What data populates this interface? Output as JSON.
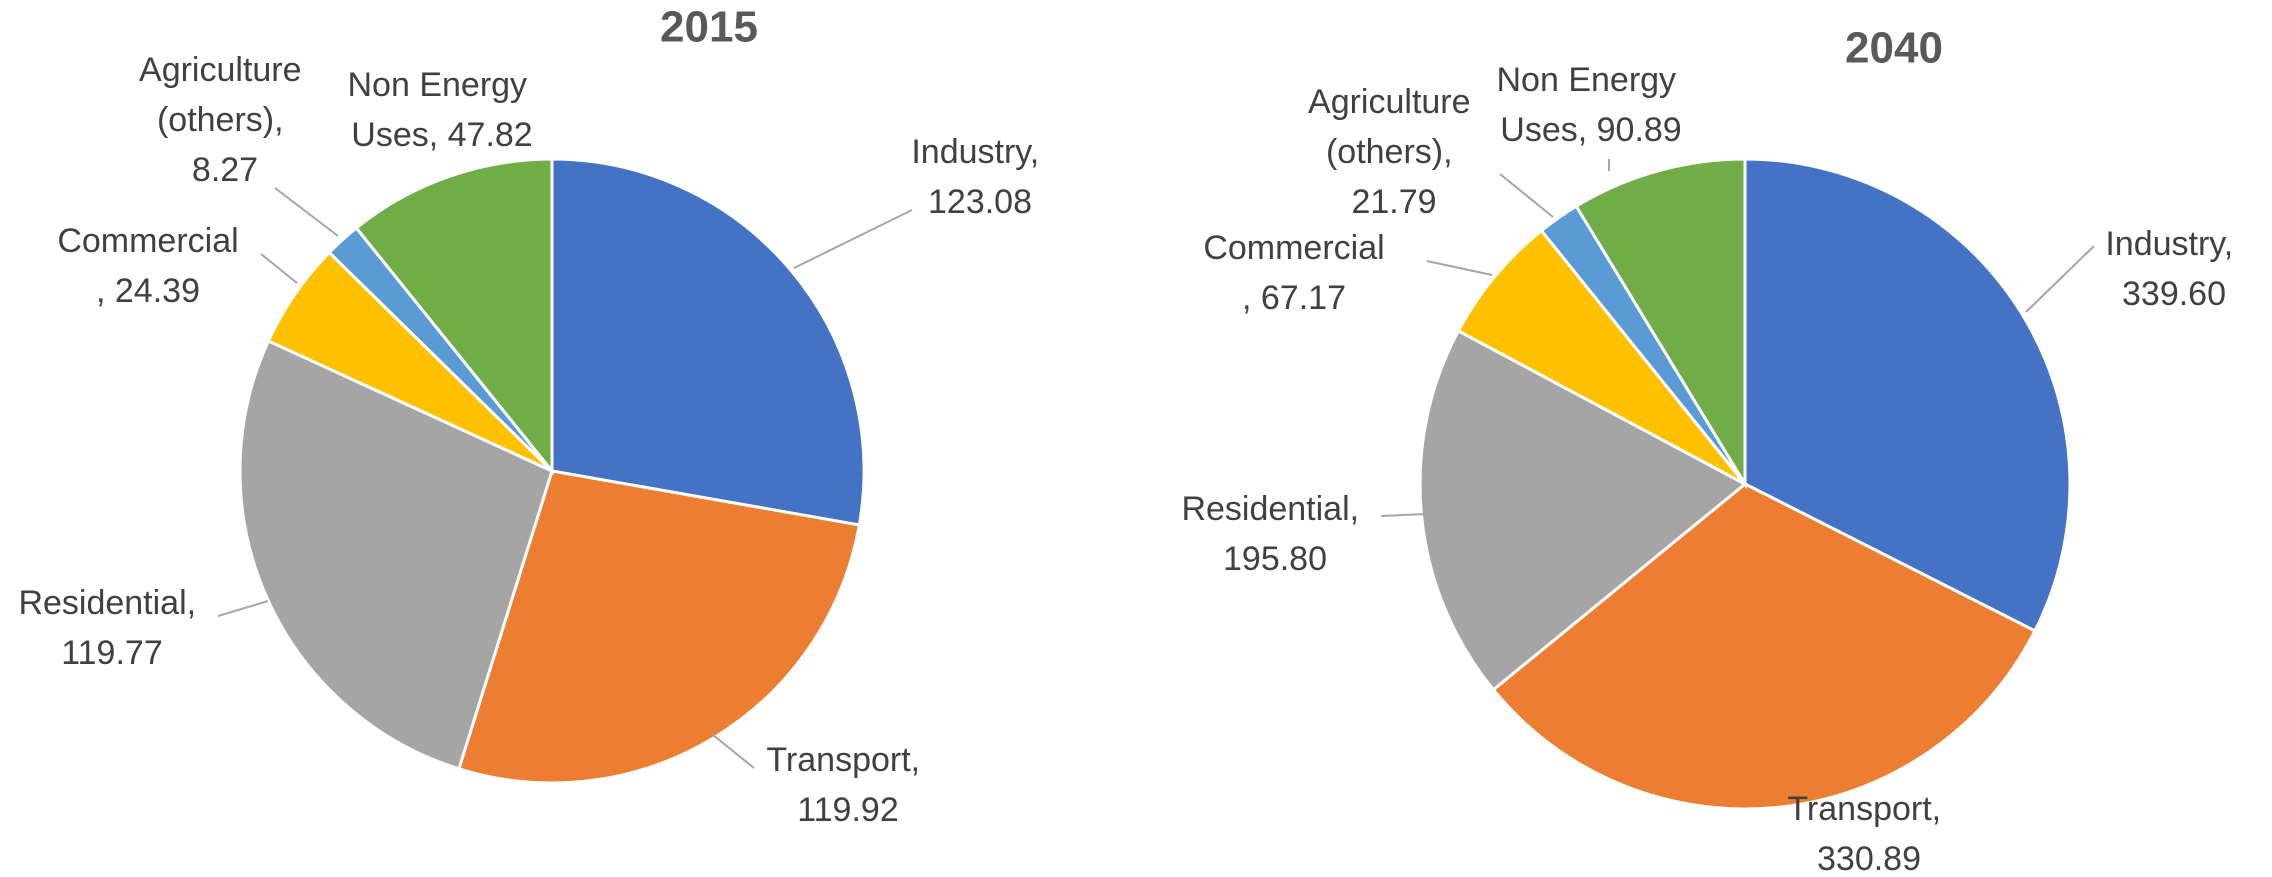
{
  "chart_data": [
    {
      "type": "pie",
      "title": "2015",
      "values": [
        123.08,
        119.92,
        119.77,
        24.39,
        8.27,
        47.82
      ],
      "value_labels": [
        "Industry, 123.08",
        "Transport, 119.92",
        "Residential, 119.77",
        "Commercial, 24.39",
        "Agriculture (others), 8.27",
        "Non Energy Uses, 47.82"
      ],
      "colors": [
        "#4472c4",
        "#ed7d31",
        "#a5a5a5",
        "#ffc000",
        "#5b9bd5",
        "#70ad47"
      ]
    },
    {
      "type": "pie",
      "title": "2040",
      "values": [
        339.6,
        330.89,
        195.8,
        67.17,
        21.79,
        90.89
      ],
      "value_labels": [
        "Industry, 339.60",
        "Transport, 330.89",
        "Residential, 195.80",
        "Commercial, 67.17",
        "Agriculture (others), 21.79",
        "Non Energy Uses, 90.89"
      ],
      "colors": [
        "#4472c4",
        "#ed7d31",
        "#a5a5a5",
        "#ffc000",
        "#5b9bd5",
        "#70ad47"
      ]
    }
  ]
}
